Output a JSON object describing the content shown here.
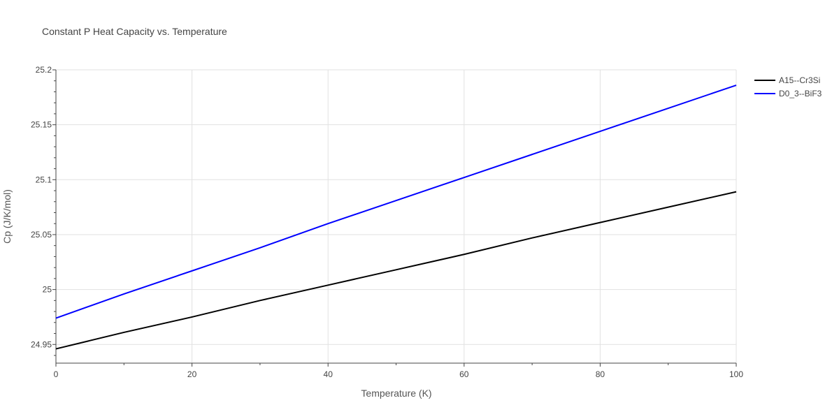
{
  "chart_data": {
    "type": "line",
    "title": "Constant P Heat Capacity vs. Temperature",
    "xlabel": "Temperature (K)",
    "ylabel": "Cp (J/K/mol)",
    "xlim": [
      0,
      100
    ],
    "ylim": [
      24.933,
      25.2
    ],
    "xticks": [
      0,
      20,
      40,
      60,
      80,
      100
    ],
    "xtick_labels": [
      "0",
      "20",
      "40",
      "60",
      "80",
      "100"
    ],
    "yticks": [
      24.95,
      25,
      25.05,
      25.1,
      25.15,
      25.2
    ],
    "ytick_labels": [
      "24.95",
      "25",
      "25.05",
      "25.1",
      "25.15",
      "25.2"
    ],
    "grid": true,
    "legend_position": "top-right",
    "series": [
      {
        "name": "A15--Cr3Si",
        "color": "#000000",
        "x": [
          0,
          10,
          20,
          30,
          40,
          50,
          60,
          70,
          80,
          90,
          100
        ],
        "y": [
          24.946,
          24.961,
          24.975,
          24.99,
          25.004,
          25.018,
          25.032,
          25.047,
          25.061,
          25.075,
          25.089
        ]
      },
      {
        "name": "D0_3--BiF3",
        "color": "#0000ff",
        "x": [
          0,
          10,
          20,
          30,
          40,
          50,
          60,
          70,
          80,
          90,
          100
        ],
        "y": [
          24.974,
          24.996,
          25.017,
          25.038,
          25.06,
          25.081,
          25.102,
          25.123,
          25.144,
          25.165,
          25.186
        ]
      }
    ]
  }
}
